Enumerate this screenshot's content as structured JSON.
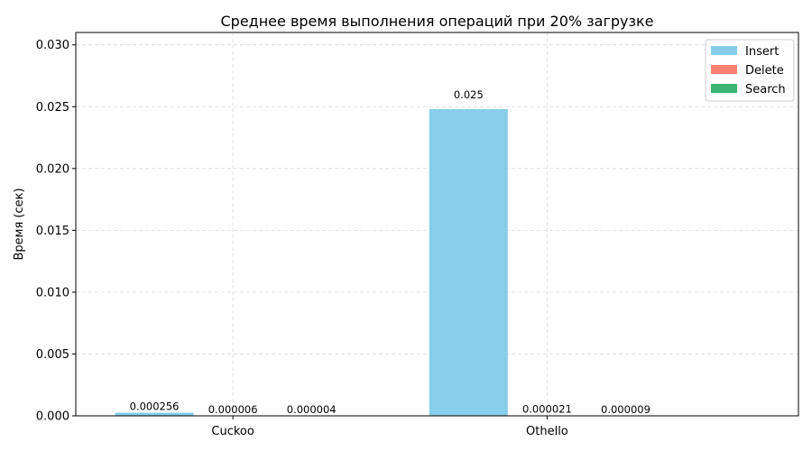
{
  "chart_data": {
    "type": "bar",
    "title": "Среднее время выполнения операций при 20% загрузке",
    "xlabel": "",
    "ylabel": "Время (сек)",
    "categories": [
      "Cuckoo",
      "Othello"
    ],
    "series": [
      {
        "name": "Insert",
        "color": "#87ceeb",
        "values": [
          0.000256,
          0.0248
        ],
        "labels": [
          "0.000256",
          "0.025"
        ]
      },
      {
        "name": "Delete",
        "color": "#fa8072",
        "values": [
          6e-06,
          2.1e-05
        ],
        "labels": [
          "0.000006",
          "0.000021"
        ]
      },
      {
        "name": "Search",
        "color": "#3cb371",
        "values": [
          4e-06,
          9e-06
        ],
        "labels": [
          "0.000004",
          "0.000009"
        ]
      }
    ],
    "ylim": [
      0,
      0.031
    ],
    "yticks": [
      0.0,
      0.005,
      0.01,
      0.015,
      0.02,
      0.025,
      0.03
    ],
    "ytick_labels": [
      "0.000",
      "0.005",
      "0.010",
      "0.015",
      "0.020",
      "0.025",
      "0.030"
    ],
    "grid": true,
    "legend_position": "top-right"
  }
}
